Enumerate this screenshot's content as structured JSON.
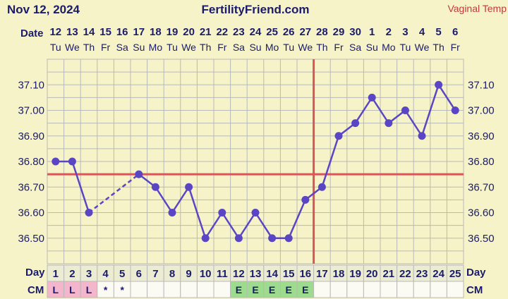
{
  "header": {
    "date": "Nov 12, 2024",
    "site": "FertilityFriend.com",
    "temp_method": "Vaginal Temp"
  },
  "labels": {
    "date_row": "Date",
    "day_row": "Day",
    "cm_row": "CM"
  },
  "dates": [
    {
      "num": "12",
      "dow": "Tu"
    },
    {
      "num": "13",
      "dow": "We"
    },
    {
      "num": "14",
      "dow": "Th"
    },
    {
      "num": "15",
      "dow": "Fr"
    },
    {
      "num": "16",
      "dow": "Sa"
    },
    {
      "num": "17",
      "dow": "Su"
    },
    {
      "num": "18",
      "dow": "Mo"
    },
    {
      "num": "19",
      "dow": "Tu"
    },
    {
      "num": "20",
      "dow": "We"
    },
    {
      "num": "21",
      "dow": "Th"
    },
    {
      "num": "22",
      "dow": "Fr"
    },
    {
      "num": "23",
      "dow": "Sa"
    },
    {
      "num": "24",
      "dow": "Su"
    },
    {
      "num": "25",
      "dow": "Mo"
    },
    {
      "num": "26",
      "dow": "Tu"
    },
    {
      "num": "27",
      "dow": "We"
    },
    {
      "num": "28",
      "dow": "Th"
    },
    {
      "num": "29",
      "dow": "Fr"
    },
    {
      "num": "30",
      "dow": "Sa"
    },
    {
      "num": "1",
      "dow": "Su"
    },
    {
      "num": "2",
      "dow": "Mo"
    },
    {
      "num": "3",
      "dow": "Tu"
    },
    {
      "num": "4",
      "dow": "We"
    },
    {
      "num": "5",
      "dow": "Th"
    },
    {
      "num": "6",
      "dow": "Fr"
    }
  ],
  "cm": [
    "L",
    "L",
    "L",
    "*",
    "*",
    "",
    "",
    "",
    "",
    "",
    "",
    "E",
    "E",
    "E",
    "E",
    "E",
    "",
    "",
    "",
    "",
    "",
    "",
    "",
    "",
    ""
  ],
  "cm_types": [
    "period",
    "period",
    "period",
    "spot",
    "spot",
    "",
    "",
    "",
    "",
    "",
    "",
    "egg",
    "egg",
    "egg",
    "egg",
    "egg",
    "",
    "",
    "",
    "",
    "",
    "",
    "",
    "",
    ""
  ],
  "colors": {
    "background": "#f6f3c8",
    "plot_bg": "#f6f3c8",
    "grid": "#b9b9b9",
    "line": "#5a46c4",
    "coverline": "#d9555a",
    "ovulation": "#d9555a",
    "period_cell": "#f4b6cc",
    "egg_cell": "#9ddc8c",
    "cell_bg": "#fbfbf4",
    "header_text": "#c23a3a"
  },
  "chart_data": {
    "type": "line",
    "title": "",
    "xlabel": "Day",
    "ylabel": "",
    "x": [
      1,
      2,
      3,
      4,
      5,
      6,
      7,
      8,
      9,
      10,
      11,
      12,
      13,
      14,
      15,
      16,
      17,
      18,
      19,
      20,
      21,
      22,
      23,
      24,
      25
    ],
    "y": [
      36.8,
      36.8,
      36.6,
      null,
      null,
      36.75,
      36.7,
      36.6,
      36.7,
      36.5,
      36.6,
      36.5,
      36.6,
      36.5,
      36.5,
      36.65,
      36.7,
      36.9,
      36.95,
      37.05,
      36.95,
      37.0,
      36.9,
      37.1,
      37.0
    ],
    "ylim": [
      36.4,
      37.2
    ],
    "yticks": [
      "36.50",
      "36.60",
      "36.70",
      "36.80",
      "36.90",
      "37.00",
      "37.10"
    ],
    "coverline": 36.75,
    "ovulation_day": 17,
    "grid": true
  }
}
